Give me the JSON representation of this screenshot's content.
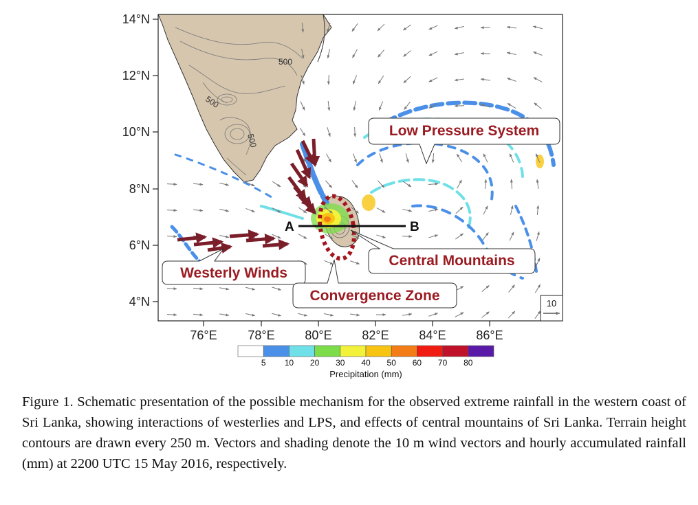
{
  "axes": {
    "latitude_labels": [
      "14°N",
      "12°N",
      "10°N",
      "8°N",
      "6°N",
      "4°N"
    ],
    "longitude_labels": [
      "76°E",
      "78°E",
      "80°E",
      "82°E",
      "84°E",
      "86°E"
    ]
  },
  "annotations": {
    "low_pressure_system": "Low Pressure System",
    "central_mountains": "Central Mountains",
    "westerly_winds": "Westerly Winds",
    "convergence_zone": "Convergence Zone",
    "cross_section_start": "A",
    "cross_section_end": "B"
  },
  "terrain_contour_labels": [
    "500",
    "500",
    "500"
  ],
  "reference_vector_label": "10",
  "colorbar": {
    "title": "Precipitation (mm)",
    "tick_labels": [
      "5",
      "10",
      "20",
      "30",
      "40",
      "50",
      "60",
      "70",
      "80"
    ],
    "colors": [
      "#ffffff",
      "#4a90e8",
      "#6fe0e8",
      "#7cdc4a",
      "#f2f23a",
      "#f8c412",
      "#f47c16",
      "#f01c12",
      "#c0102a",
      "#5a1aa8"
    ]
  },
  "colors": {
    "land": "#d6c6ae",
    "westerly_arrow": "#7a1e2a",
    "convergence_zone": "#a4161e",
    "callout_text": "#9b1b22"
  },
  "caption": "Figure 1. Schematic presentation of the possible mechanism for the observed extreme rainfall in the western coast of Sri Lanka, showing interactions of westerlies and LPS, and effects of central mountains of Sri Lanka. Terrain height contours are drawn every 250 m. Vectors and shading denote the 10 m wind vectors and hourly accumulated rainfall (mm) at 2200 UTC 15 May 2016, respectively."
}
